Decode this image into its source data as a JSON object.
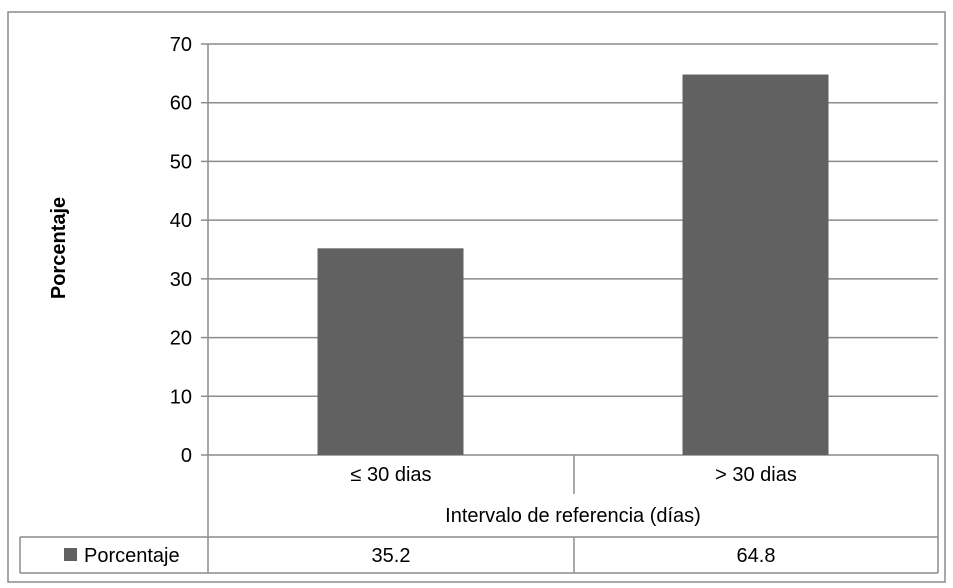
{
  "chart_data": {
    "type": "bar",
    "categories": [
      "≤ 30 dias",
      "> 30 dias"
    ],
    "series": [
      {
        "name": "Porcentaje",
        "values": [
          35.2,
          64.8
        ],
        "color": "#616161"
      }
    ],
    "ylabel": "Porcentaje",
    "xlabel": "Intervalo de referencia (días)",
    "ylim": [
      0,
      70
    ],
    "yticks": [
      0,
      10,
      20,
      30,
      40,
      50,
      60,
      70
    ],
    "grid": true,
    "data_table": {
      "row_label": "Porcentaje",
      "values": [
        "35.2",
        "64.8"
      ]
    }
  }
}
